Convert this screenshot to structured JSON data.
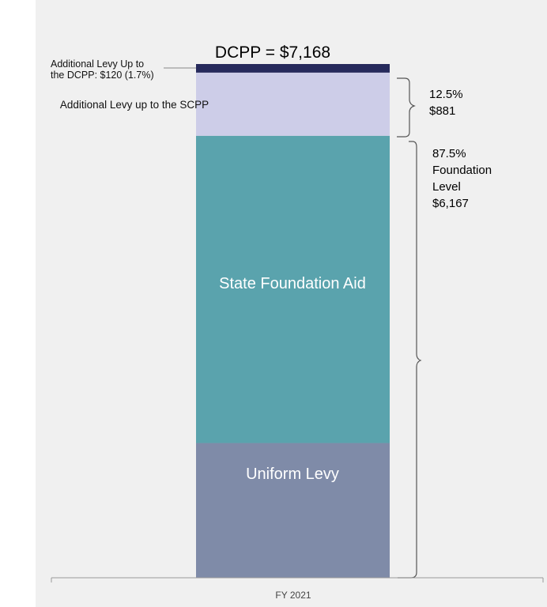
{
  "chart_data": {
    "type": "bar",
    "stacked": true,
    "categories": [
      "FY 2021"
    ],
    "series": [
      {
        "name": "Uniform Levy",
        "values": [
          1880
        ],
        "color": "#7f8ba8"
      },
      {
        "name": "State Foundation Aid",
        "values": [
          4287
        ],
        "color": "#5aa3ad"
      },
      {
        "name": "Additional Levy up to the SCPP",
        "values": [
          881
        ],
        "color": "#cdcde8"
      },
      {
        "name": "Additional Levy Up to the DCPP",
        "values": [
          120
        ],
        "color": "#262a5c"
      }
    ],
    "total_label": "DCPP = $7,168",
    "ylim": [
      0,
      7168
    ],
    "annotations": {
      "dcpp_callout": [
        "Additional Levy Up to",
        "the DCPP:  $120 (1.7%)"
      ],
      "scpp_bracket": [
        "12.5%",
        "$881"
      ],
      "foundation_bracket": [
        "87.5%",
        "Foundation",
        "Level",
        "$6,167"
      ]
    },
    "grid": false,
    "legend": "none"
  }
}
